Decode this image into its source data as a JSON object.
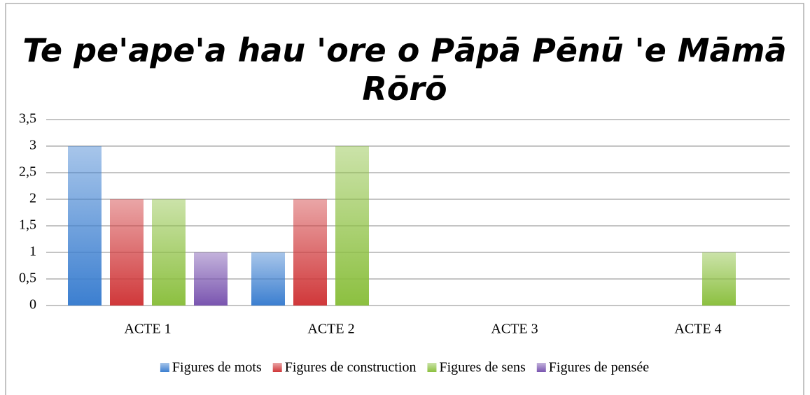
{
  "chart_data": {
    "type": "bar",
    "title": "Te pe'ape'a hau 'ore o Pāpā Pēnū 'e Māmā Rōrō",
    "categories": [
      "ACTE 1",
      "ACTE 2",
      "ACTE 3",
      "ACTE 4"
    ],
    "series": [
      {
        "name": "Figures de mots",
        "color": "#3c7fd0",
        "values": [
          3,
          1,
          0,
          0
        ]
      },
      {
        "name": "Figures de construction",
        "color": "#d0383a",
        "values": [
          2,
          2,
          0,
          0
        ]
      },
      {
        "name": "Figures de sens",
        "color": "#8cc040",
        "values": [
          2,
          3,
          0,
          1
        ]
      },
      {
        "name": "Figures de pensée",
        "color": "#7a55b0",
        "values": [
          1,
          0,
          0,
          0
        ]
      }
    ],
    "ylim": [
      0,
      3.5
    ],
    "yticks": [
      0,
      {
        "value": 0.5,
        "label": "0,5"
      },
      1,
      {
        "value": 1.5,
        "label": "1,5"
      },
      2,
      {
        "value": 2.5,
        "label": "2,5"
      },
      3,
      {
        "value": 3.5,
        "label": "3,5"
      }
    ],
    "grid": true,
    "legend": "bottom"
  }
}
